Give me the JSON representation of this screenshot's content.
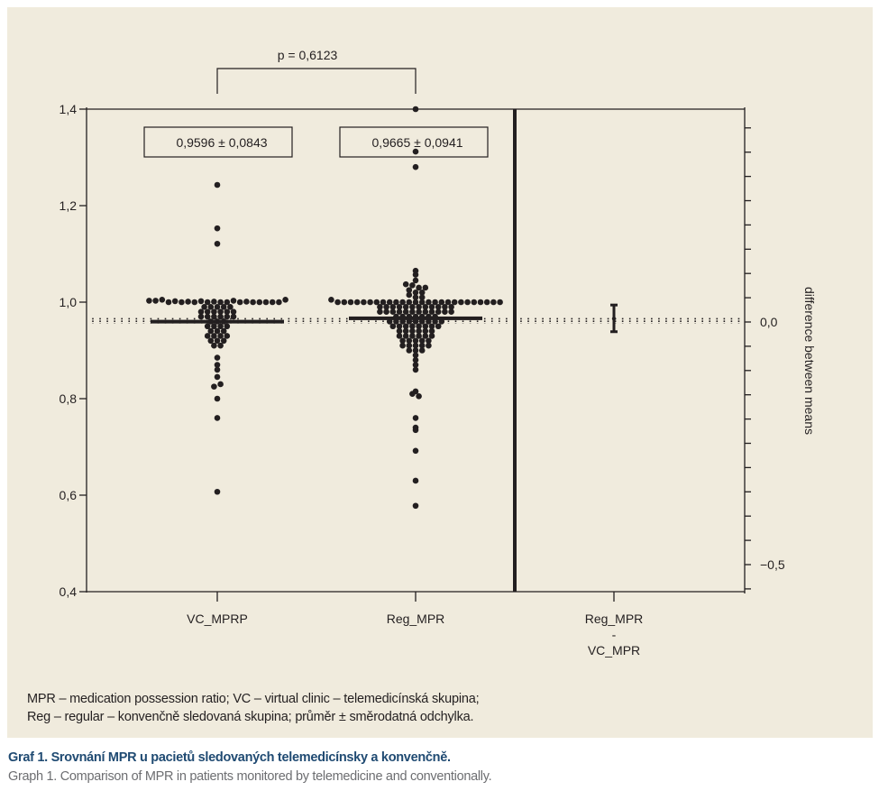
{
  "chart_data": {
    "type": "scatter",
    "subtype": "dot-plot with mean difference panel",
    "left_axis": {
      "ylim": [
        0.4,
        1.4
      ],
      "ticks": [
        0.4,
        0.6,
        0.8,
        1.0,
        1.2,
        1.4
      ],
      "tick_labels": [
        "0,4",
        "0,6",
        "0,8",
        "1,0",
        "1,2",
        "1,4"
      ]
    },
    "right_axis": {
      "label": "difference between means",
      "labeled_ticks": [
        0.0,
        -0.5
      ],
      "tick_labels": [
        "0,0",
        "−0,5"
      ],
      "minor_tick_step": 0.05,
      "range": [
        -0.56,
        0.44
      ]
    },
    "categories": [
      "VC_MPRP",
      "Reg_MPR",
      "Reg_MPR\n-\nVC_MPR"
    ],
    "category_labels": [
      {
        "lines": [
          "VC_MPRP"
        ]
      },
      {
        "lines": [
          "Reg_MPR"
        ]
      },
      {
        "lines": [
          "Reg_MPR",
          "-",
          "VC_MPR"
        ]
      }
    ],
    "series": [
      {
        "name": "VC_MPRP",
        "mean": 0.9596,
        "sd": 0.0843,
        "summary_label": "0,9596 ± 0,0843",
        "points": [
          1.243,
          1.153,
          1.121,
          1.003,
          1.003,
          1.005,
          1.0,
          1.002,
          1.0,
          1.001,
          1.0,
          1.002,
          1.0,
          1.001,
          1.0,
          1.0,
          1.003,
          1.0,
          1.001,
          1.0,
          1.0,
          1.0,
          1.0,
          1.0,
          1.005,
          0.99,
          0.99,
          0.99,
          0.99,
          0.99,
          0.98,
          0.98,
          0.98,
          0.98,
          0.98,
          0.98,
          0.97,
          0.97,
          0.97,
          0.97,
          0.97,
          0.97,
          0.96,
          0.96,
          0.96,
          0.95,
          0.95,
          0.95,
          0.95,
          0.94,
          0.94,
          0.94,
          0.93,
          0.93,
          0.93,
          0.93,
          0.92,
          0.92,
          0.92,
          0.91,
          0.91,
          0.885,
          0.86,
          0.87,
          0.845,
          0.825,
          0.83,
          0.8,
          0.76,
          0.607
        ]
      },
      {
        "name": "Reg_MPR",
        "mean": 0.9665,
        "sd": 0.0941,
        "summary_label": "0,9665 ± 0,0941",
        "points": [
          1.4,
          1.312,
          1.28,
          1.065,
          1.057,
          1.045,
          1.037,
          1.035,
          1.03,
          1.03,
          1.025,
          1.02,
          1.02,
          1.015,
          1.01,
          1.01,
          1.005,
          1.0,
          1.0,
          1.0,
          1.0,
          1.0,
          1.0,
          1.0,
          1.0,
          1.0,
          1.0,
          1.0,
          1.0,
          1.0,
          1.0,
          1.0,
          1.0,
          1.0,
          1.0,
          1.0,
          1.0,
          1.0,
          1.0,
          1.0,
          1.0,
          1.0,
          1.0,
          0.99,
          0.99,
          0.99,
          0.99,
          0.99,
          0.99,
          0.99,
          0.99,
          0.99,
          0.99,
          0.99,
          0.99,
          0.98,
          0.98,
          0.98,
          0.98,
          0.98,
          0.98,
          0.98,
          0.98,
          0.98,
          0.98,
          0.98,
          0.98,
          0.97,
          0.97,
          0.97,
          0.97,
          0.97,
          0.97,
          0.97,
          0.96,
          0.96,
          0.96,
          0.96,
          0.96,
          0.96,
          0.96,
          0.96,
          0.96,
          0.95,
          0.95,
          0.95,
          0.95,
          0.95,
          0.95,
          0.95,
          0.95,
          0.94,
          0.94,
          0.94,
          0.94,
          0.94,
          0.94,
          0.93,
          0.93,
          0.93,
          0.93,
          0.93,
          0.93,
          0.92,
          0.92,
          0.92,
          0.92,
          0.92,
          0.91,
          0.91,
          0.91,
          0.91,
          0.91,
          0.9,
          0.9,
          0.9,
          0.89,
          0.88,
          0.87,
          0.86,
          0.815,
          0.81,
          0.805,
          0.76,
          0.74,
          0.735,
          0.692,
          0.63,
          0.578
        ]
      }
    ],
    "difference": {
      "name": "Reg_MPR - VC_MPR",
      "estimate": 0.0069,
      "ci_low": -0.02,
      "ci_high": 0.035
    },
    "reference_line": {
      "value": 0.9596,
      "style": "dotted"
    },
    "annotation": {
      "text": "p = 0,6123",
      "between": [
        "VC_MPRP",
        "Reg_MPR"
      ]
    },
    "grid": false,
    "legend": "none"
  },
  "notes": {
    "line1": "MPR – medication possession ratio; VC – virtual clinic – telemedicínská skupina;",
    "line2": "Reg – regular – konvenčně sledovaná skupina; průměr ± směrodatná odchylka."
  },
  "caption": {
    "czech": "Graf 1. Srovnání MPR u pacietů sledovaných telemedicínsky a konvenčně.",
    "english": "Graph 1. Comparison of MPR in patients monitored by telemedicine and conventionally."
  },
  "colors": {
    "panel_background": "#f0ebdd",
    "ink": "#231f20",
    "caption_title": "#1f4a72",
    "caption_sub": "#6d6e71"
  }
}
